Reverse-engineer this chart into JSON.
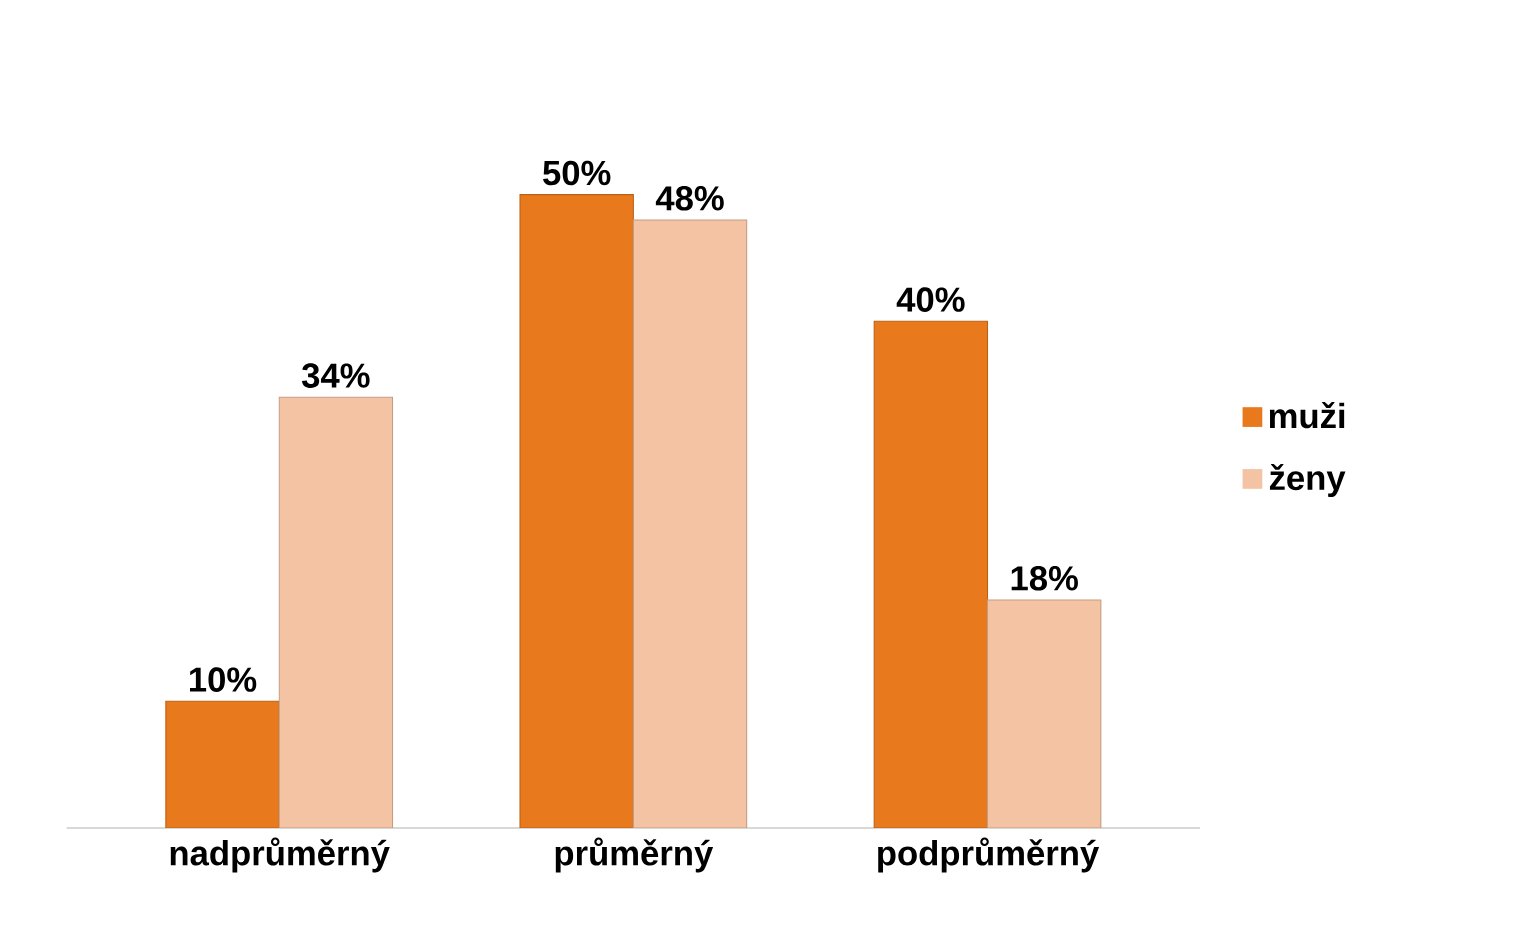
{
  "chart_data": {
    "type": "bar",
    "categories": [
      "nadprůměrný",
      "průměrný",
      "podprůměrný"
    ],
    "series": [
      {
        "name": "muži",
        "color": "#e8791c",
        "values": [
          10,
          50,
          40
        ],
        "value_labels": [
          "10%",
          "50%",
          "40%"
        ]
      },
      {
        "name": "ženy",
        "color": "#f4c3a3",
        "values": [
          34,
          48,
          18
        ],
        "value_labels": [
          "34%",
          "48%",
          "18%"
        ]
      }
    ],
    "legend": "right"
  }
}
